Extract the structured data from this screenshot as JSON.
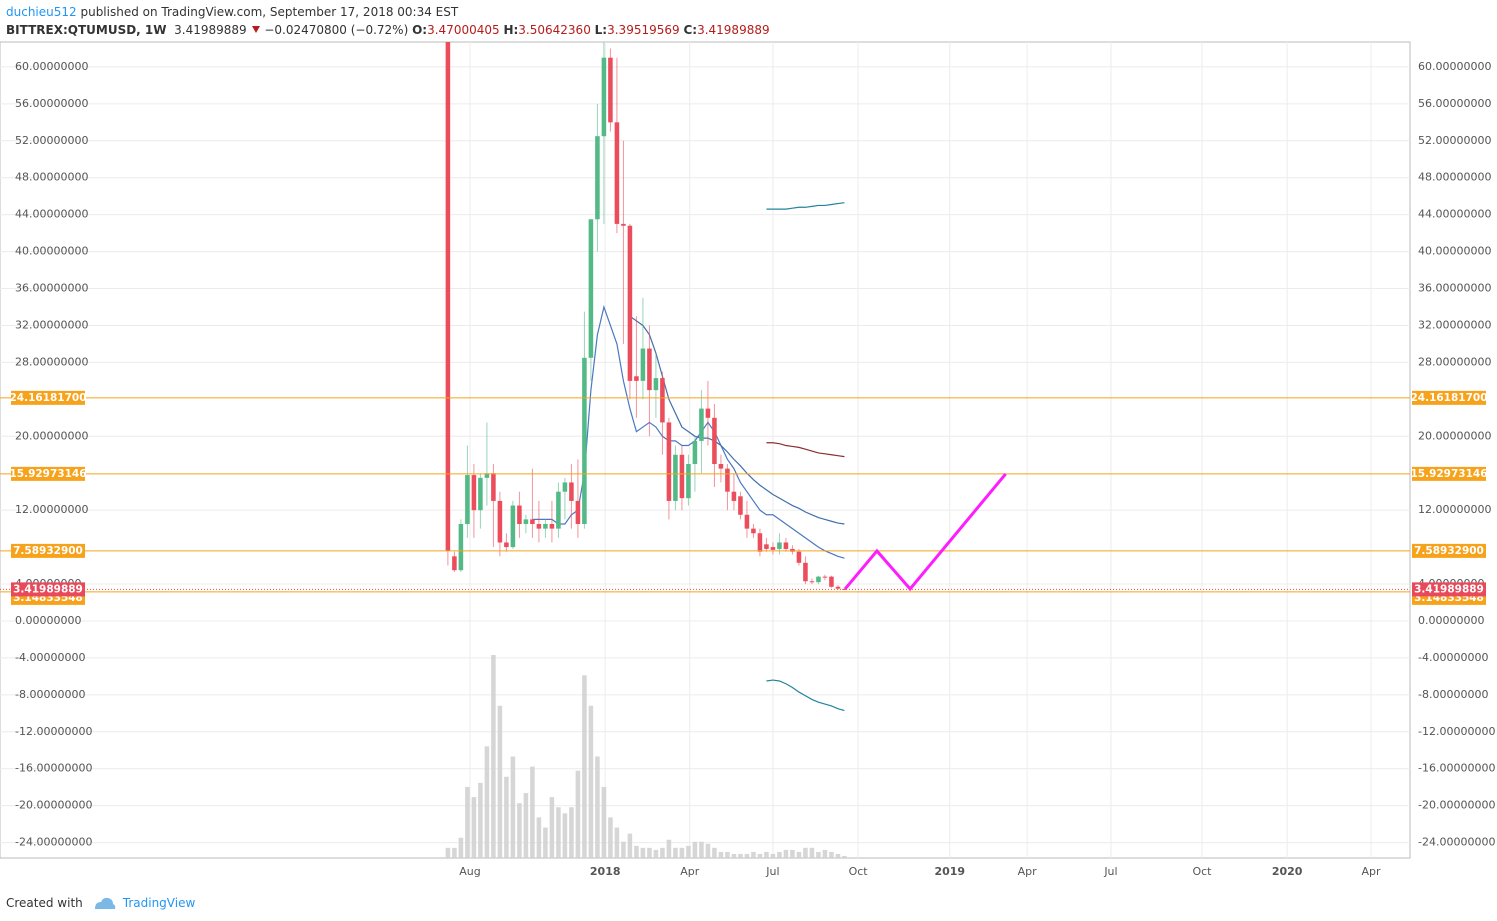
{
  "header": {
    "author": "duchieu512",
    "published": " published on TradingView.com, September 17, 2018 00:34 EST",
    "symbol": "BITTREX:QTUMUSD, 1W",
    "last": "3.41989889",
    "change": "−0.02470800 (−0.72%)",
    "ohlc": [
      {
        "k": "O:",
        "v": "3.47000405"
      },
      {
        "k": "H:",
        "v": "3.50642360"
      },
      {
        "k": "L:",
        "v": "3.39519569"
      },
      {
        "k": "C:",
        "v": "3.41989889"
      }
    ]
  },
  "footer": {
    "created": "Created with",
    "brand": "TradingView"
  },
  "chart_data": {
    "type": "candlestick",
    "x": [
      0,
      1,
      2,
      3,
      4,
      5,
      6,
      7,
      8,
      9,
      10,
      11,
      12,
      13,
      14,
      15,
      16,
      17,
      18,
      19,
      20,
      21,
      22,
      23,
      24,
      25,
      26,
      27,
      28,
      29,
      30,
      31,
      32,
      33,
      34,
      35,
      36,
      37,
      38,
      39,
      40,
      41,
      42,
      43,
      44,
      45,
      46,
      47,
      48,
      49,
      50,
      51,
      52,
      53,
      54,
      55,
      56,
      57,
      58,
      59,
      60,
      61
    ],
    "open": [
      63,
      7,
      5.5,
      10.5,
      15.8,
      12,
      15.5,
      16,
      13,
      8.5,
      8,
      12.5,
      10.5,
      11,
      10.5,
      10,
      10.5,
      10,
      14,
      15,
      13,
      10.5,
      28.5,
      43.5,
      52.5,
      61,
      54,
      43,
      42.8,
      26.5,
      26,
      29.5,
      25,
      26.3,
      21.5,
      13,
      18,
      13.3,
      17,
      19.5,
      23,
      22,
      17,
      16.5,
      14,
      13.5,
      11.5,
      10,
      9.5,
      8.3,
      8,
      7.8,
      8.5,
      7.8,
      7.5,
      6.3,
      4.3,
      4.2,
      4.8,
      4.8,
      3.7,
      3.47000405
    ],
    "high": [
      63,
      7.5,
      11,
      19,
      17,
      16,
      21.5,
      17,
      14,
      9.5,
      13,
      14,
      11.5,
      16.5,
      13,
      11,
      13,
      15,
      15.5,
      17,
      17.5,
      33.5,
      43.5,
      56,
      66,
      62,
      61,
      52,
      43,
      33,
      35,
      32,
      29,
      27,
      22,
      19,
      19,
      18,
      20,
      25,
      26,
      23.5,
      18,
      17,
      16,
      14,
      13,
      10.5,
      10,
      9,
      8.5,
      9.5,
      9,
      8.2,
      7.8,
      7,
      4.6,
      4.9,
      5,
      4.9,
      3.9,
      3.5064236
    ],
    "low": [
      6,
      5.3,
      5.3,
      9,
      9,
      10,
      12.5,
      8,
      7,
      7.5,
      7.8,
      9,
      9.5,
      9,
      8.5,
      9,
      8.5,
      9,
      11,
      10,
      9,
      10,
      26,
      40,
      43,
      53,
      42,
      30,
      24,
      22,
      24,
      20,
      22,
      18,
      11,
      12,
      12,
      12.5,
      14,
      16,
      19,
      14.5,
      15,
      12,
      12,
      11,
      9,
      9,
      7,
      7.5,
      7.2,
      7.2,
      7.5,
      7.2,
      6,
      4,
      4,
      4,
      4.4,
      3.6,
      3.4,
      3.39519569
    ],
    "close": [
      7.6,
      5.5,
      10.5,
      15.8,
      12,
      15.5,
      16,
      13,
      8.5,
      8,
      12.5,
      10.5,
      11,
      10.5,
      10,
      10.5,
      10,
      14,
      15,
      13,
      10.5,
      28.5,
      43.5,
      52.5,
      61,
      54,
      43,
      42.8,
      26,
      26,
      29.5,
      25,
      26.3,
      21.5,
      13,
      18,
      13.3,
      17,
      19.5,
      23,
      22,
      17,
      16.5,
      14,
      13,
      11.5,
      10,
      9.5,
      7.5,
      7.8,
      7.7,
      8.5,
      7.8,
      7.5,
      6.3,
      4.3,
      4.2,
      4.8,
      4.7,
      3.7,
      3.5,
      3.41989889
    ],
    "volume": [
      5,
      5,
      10,
      35,
      30,
      37,
      55,
      100,
      75,
      40,
      50,
      27,
      32,
      45,
      20,
      15,
      30,
      25,
      22,
      25,
      43,
      90,
      75,
      50,
      35,
      20,
      15,
      8,
      12,
      6,
      5,
      5,
      4,
      5,
      9,
      5,
      5,
      6,
      8,
      8,
      7,
      5,
      3,
      3,
      2,
      2,
      2,
      3,
      2,
      3,
      2,
      3,
      4,
      4,
      3,
      5,
      5,
      3,
      4,
      3,
      2,
      1
    ],
    "up_color": "#53b987",
    "down_color": "#eb4d5c",
    "volume_color": "#cfcfcf",
    "lines": [
      {
        "color": "#4a78c2",
        "values": [
          null,
          null,
          null,
          null,
          null,
          null,
          null,
          null,
          null,
          null,
          null,
          null,
          null,
          11,
          11,
          11,
          11,
          10.5,
          10.5,
          11.5,
          12,
          16,
          25,
          31,
          34,
          32,
          30,
          26,
          23,
          20.5,
          21,
          21.5,
          21,
          20,
          19.5,
          19.5,
          19,
          19,
          19.5,
          20.5,
          21.5,
          20.5,
          19,
          17.5,
          16.5,
          15,
          14,
          13,
          12,
          11.5,
          11.5,
          11,
          10.5,
          10,
          9.5,
          9,
          8.5,
          8,
          7.6,
          7.3,
          7,
          6.8
        ]
      },
      {
        "color": "#3f6fae",
        "values": [
          null,
          null,
          null,
          null,
          null,
          null,
          null,
          null,
          null,
          null,
          null,
          null,
          null,
          null,
          null,
          null,
          null,
          null,
          null,
          null,
          null,
          null,
          null,
          null,
          null,
          null,
          null,
          null,
          33,
          32.5,
          32,
          31,
          29,
          26.5,
          24,
          22.5,
          21,
          20.5,
          20,
          19.8,
          19.8,
          19.5,
          19,
          18.3,
          17.5,
          16.8,
          16,
          15.3,
          14.7,
          14.2,
          13.7,
          13.3,
          12.9,
          12.5,
          12.2,
          11.8,
          11.5,
          11.2,
          11,
          10.8,
          10.6,
          10.5
        ]
      },
      {
        "color": "#21849c",
        "values": [
          null,
          null,
          null,
          null,
          null,
          null,
          null,
          null,
          null,
          null,
          null,
          null,
          null,
          null,
          null,
          null,
          null,
          null,
          null,
          null,
          null,
          null,
          null,
          null,
          null,
          null,
          null,
          null,
          null,
          null,
          null,
          null,
          null,
          null,
          null,
          null,
          null,
          null,
          null,
          null,
          null,
          null,
          null,
          null,
          null,
          null,
          null,
          null,
          null,
          44.6,
          44.6,
          44.6,
          44.6,
          44.7,
          44.8,
          44.8,
          44.9,
          45,
          45,
          45.1,
          45.2,
          45.3
        ]
      },
      {
        "color": "#8b2e2e",
        "values": [
          null,
          null,
          null,
          null,
          null,
          null,
          null,
          null,
          null,
          null,
          null,
          null,
          null,
          null,
          null,
          null,
          null,
          null,
          null,
          null,
          null,
          null,
          null,
          null,
          null,
          null,
          null,
          null,
          null,
          null,
          null,
          null,
          null,
          null,
          null,
          null,
          null,
          null,
          null,
          null,
          null,
          null,
          null,
          null,
          null,
          null,
          null,
          null,
          null,
          19.3,
          19.3,
          19.2,
          19,
          18.9,
          18.8,
          18.6,
          18.4,
          18.2,
          18.1,
          18,
          17.9,
          17.8
        ]
      },
      {
        "color": "#21849c",
        "values": [
          null,
          null,
          null,
          null,
          null,
          null,
          null,
          null,
          null,
          null,
          null,
          null,
          null,
          null,
          null,
          null,
          null,
          null,
          null,
          null,
          null,
          null,
          null,
          null,
          null,
          null,
          null,
          null,
          null,
          null,
          null,
          null,
          null,
          null,
          null,
          null,
          null,
          null,
          null,
          null,
          null,
          null,
          null,
          null,
          null,
          null,
          null,
          null,
          null,
          -6.5,
          -6.4,
          -6.5,
          -6.8,
          -7.2,
          -7.7,
          -8.1,
          -8.5,
          -8.8,
          -9,
          -9.2,
          -9.5,
          -9.7
        ]
      }
    ],
    "levels": [
      {
        "value": 24.161817,
        "label": "24.16181700"
      },
      15.92973146,
      {
        "value": 7.589329,
        "label": "7.58932900"
      },
      3.14833548
    ],
    "level_color": "#f7a21b",
    "last_color": "#e84a5c",
    "drawing": {
      "color": "#ff1cff",
      "x": [
        61.1,
        66,
        71.1,
        85.8
      ],
      "values": [
        3.47,
        7.58,
        3.47,
        15.92
      ]
    },
    "xlim": [
      -68.9,
      148
    ],
    "ylim": [
      -25.67,
      62.7
    ],
    "xticks": [
      {
        "value": 3.4,
        "label": "Aug"
      },
      {
        "value": 24.2,
        "label": "2018"
      },
      {
        "value": 37.2,
        "label": "Apr"
      },
      {
        "value": 50,
        "label": "Jul"
      },
      {
        "value": 63.1,
        "label": "Oct"
      },
      {
        "value": 77.2,
        "label": "2019"
      },
      {
        "value": 89.1,
        "label": "Apr"
      },
      {
        "value": 102,
        "label": "Jul"
      },
      {
        "value": 116,
        "label": "Oct"
      },
      {
        "value": 129.1,
        "label": "2020"
      },
      {
        "value": 142,
        "label": "Apr"
      }
    ],
    "yticks": [
      {
        "value": -24,
        "label": "-24.00000000"
      },
      {
        "value": -20,
        "label": "-20.00000000"
      },
      {
        "value": -16,
        "label": "-16.00000000"
      },
      {
        "value": -12,
        "label": "-12.00000000"
      },
      {
        "value": -8,
        "label": "-8.00000000"
      },
      {
        "value": -4,
        "label": "-4.00000000"
      },
      {
        "value": 0,
        "label": "0.00000000"
      },
      {
        "value": 4,
        "label": "4.00000000"
      },
      {
        "value": 12,
        "label": "12.00000000"
      },
      {
        "value": 20,
        "label": "20.00000000"
      },
      {
        "value": 28,
        "label": "28.00000000"
      },
      {
        "value": 32,
        "label": "32.00000000"
      },
      {
        "value": 36,
        "label": "36.00000000"
      },
      {
        "value": 40,
        "label": "40.00000000"
      },
      {
        "value": 44,
        "label": "44.00000000"
      },
      {
        "value": 48,
        "label": "48.00000000"
      },
      {
        "value": 52,
        "label": "52.00000000"
      },
      {
        "value": 56,
        "label": "56.00000000"
      },
      {
        "value": 60,
        "label": "60.00000000"
      }
    ],
    "grid": true
  }
}
